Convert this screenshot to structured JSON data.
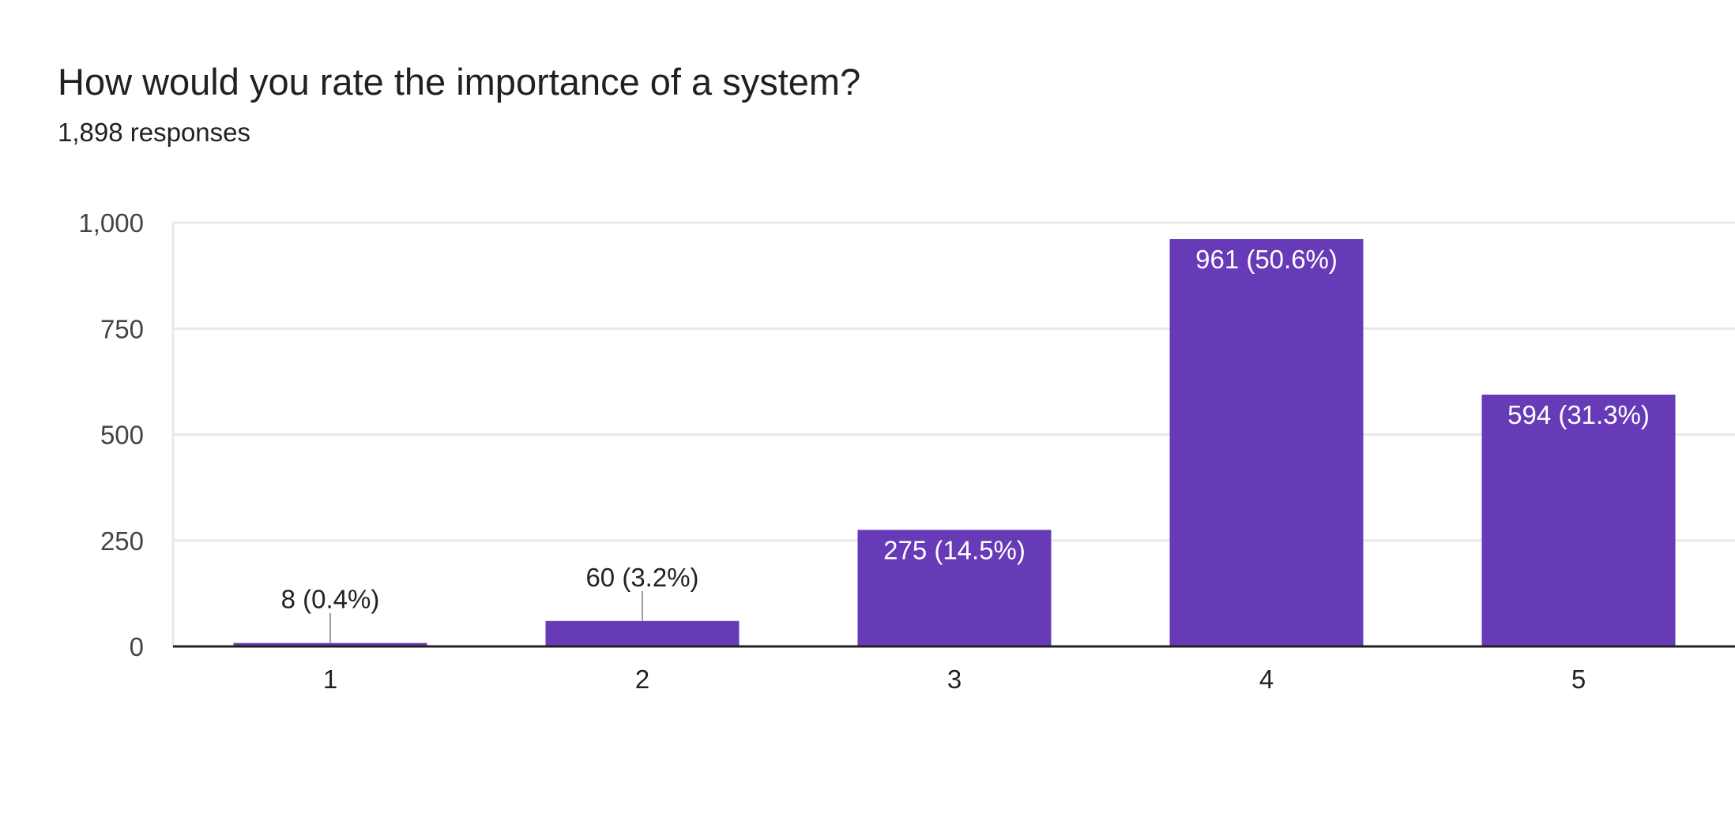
{
  "header": {
    "title": "How would you rate the importance of a system?",
    "responses": "1,898 responses"
  },
  "colors": {
    "bar": "#673ab7",
    "grid": "#e8e8e8",
    "baseline": "#222222",
    "leader": "#9e9e9e"
  },
  "chart_data": {
    "type": "bar",
    "title": "How would you rate the importance of a system?",
    "subtitle": "1,898 responses",
    "categories": [
      "1",
      "2",
      "3",
      "4",
      "5"
    ],
    "values": [
      8,
      60,
      275,
      961,
      594
    ],
    "data_labels": [
      "8 (0.4%)",
      "60 (3.2%)",
      "275 (14.5%)",
      "961 (50.6%)",
      "594 (31.3%)"
    ],
    "ylim": [
      0,
      1000
    ],
    "yticks": [
      0,
      250,
      500,
      750,
      1000
    ],
    "ytick_labels": [
      "0",
      "250",
      "500",
      "750",
      "1,000"
    ],
    "xlabel": "",
    "ylabel": "",
    "grid": true,
    "legend": "none"
  }
}
